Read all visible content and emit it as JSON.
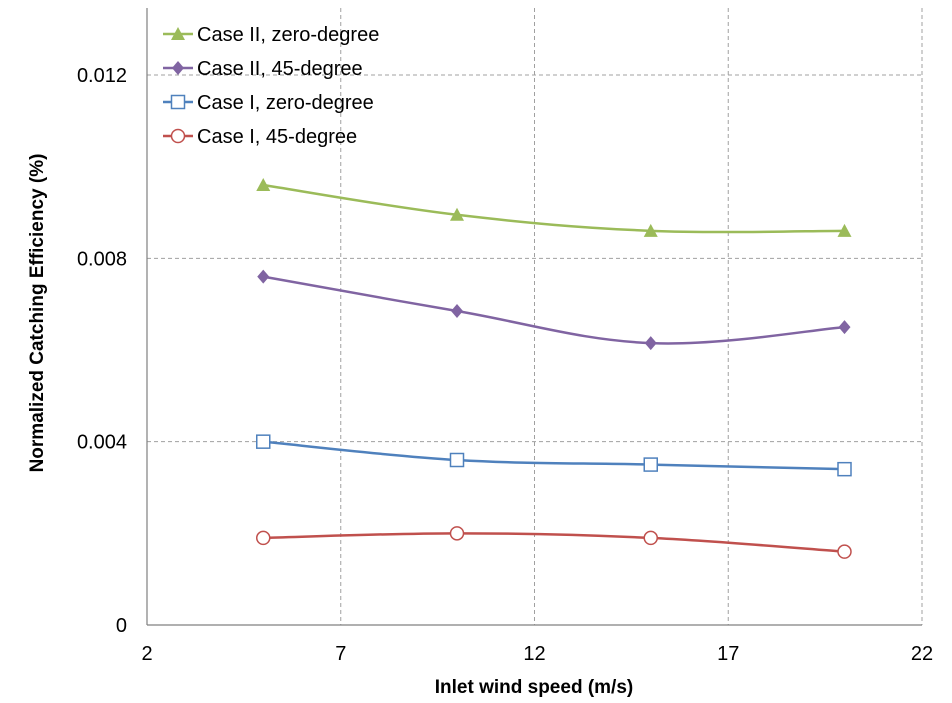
{
  "chart_data": {
    "type": "line",
    "title": "",
    "xlabel": "Inlet wind speed (m/s)",
    "ylabel": "Normalized Catching Efficiency (%)",
    "xlim": [
      2,
      22
    ],
    "ylim": [
      0,
      0.012
    ],
    "xticks": [
      2,
      7,
      12,
      17,
      22
    ],
    "yticks": [
      0,
      0.004,
      0.008,
      0.012
    ],
    "xtick_labels": [
      "2",
      "7",
      "12",
      "17",
      "22"
    ],
    "ytick_labels": [
      "0",
      "0.004",
      "0.008",
      "0.012"
    ],
    "grid": true,
    "legend_position": "top-left",
    "series": [
      {
        "name": "Case II, zero-degree",
        "color": "#9bbb59",
        "marker": "triangle",
        "x": [
          5,
          10,
          15,
          20
        ],
        "y": [
          0.0096,
          0.00895,
          0.0086,
          0.0086
        ]
      },
      {
        "name": "Case II, 45-degree",
        "color": "#8064a2",
        "marker": "diamond",
        "x": [
          5,
          10,
          15,
          20
        ],
        "y": [
          0.0076,
          0.00685,
          0.00615,
          0.0065
        ]
      },
      {
        "name": "Case I, zero-degree",
        "color": "#4f81bd",
        "marker": "square-open",
        "x": [
          5,
          10,
          15,
          20
        ],
        "y": [
          0.004,
          0.0036,
          0.0035,
          0.0034
        ]
      },
      {
        "name": "Case I, 45-degree",
        "color": "#c0504d",
        "marker": "circle-open",
        "x": [
          5,
          10,
          15,
          20
        ],
        "y": [
          0.0019,
          0.002,
          0.0019,
          0.0016
        ]
      }
    ]
  }
}
